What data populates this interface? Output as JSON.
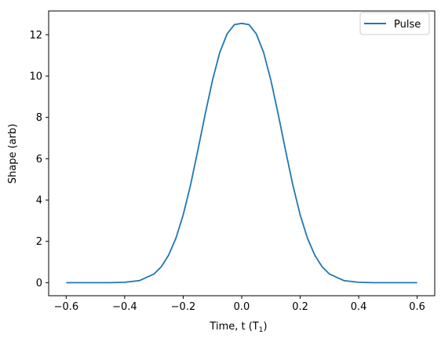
{
  "chart_data": {
    "type": "line",
    "title": "",
    "xlabel": "Time, t (T",
    "xlabel_sub": "1",
    "xlabel_close": ")",
    "ylabel": "Shape (arb)",
    "xlim": [
      -0.66,
      0.66
    ],
    "ylim": [
      -0.63,
      13.15
    ],
    "xticks": [
      -0.6,
      -0.4,
      -0.2,
      0.0,
      0.2,
      0.4,
      0.6
    ],
    "xtick_labels": [
      "−0.6",
      "−0.4",
      "−0.2",
      "0.0",
      "0.2",
      "0.4",
      "0.6"
    ],
    "yticks": [
      0,
      2,
      4,
      6,
      8,
      10,
      12
    ],
    "ytick_labels": [
      "0",
      "2",
      "4",
      "6",
      "8",
      "10",
      "12"
    ],
    "grid": false,
    "legend_position": "top-right",
    "series": [
      {
        "name": "Pulse",
        "color": "#1f77b4",
        "x": [
          -0.6,
          -0.55,
          -0.5,
          -0.45,
          -0.4,
          -0.35,
          -0.3,
          -0.275,
          -0.25,
          -0.225,
          -0.2,
          -0.175,
          -0.15,
          -0.125,
          -0.1,
          -0.075,
          -0.05,
          -0.025,
          0.0,
          0.025,
          0.05,
          0.075,
          0.1,
          0.125,
          0.15,
          0.175,
          0.2,
          0.225,
          0.25,
          0.275,
          0.3,
          0.35,
          0.4,
          0.45,
          0.5,
          0.55,
          0.6
        ],
        "y": [
          0.0,
          0.0,
          0.0,
          0.0,
          0.02,
          0.1,
          0.42,
          0.77,
          1.33,
          2.15,
          3.28,
          4.72,
          6.4,
          8.14,
          9.79,
          11.14,
          12.04,
          12.49,
          12.55,
          12.49,
          12.04,
          11.14,
          9.79,
          8.14,
          6.4,
          4.72,
          3.28,
          2.15,
          1.33,
          0.77,
          0.42,
          0.1,
          0.02,
          0.0,
          0.0,
          0.0,
          0.0
        ]
      }
    ]
  }
}
